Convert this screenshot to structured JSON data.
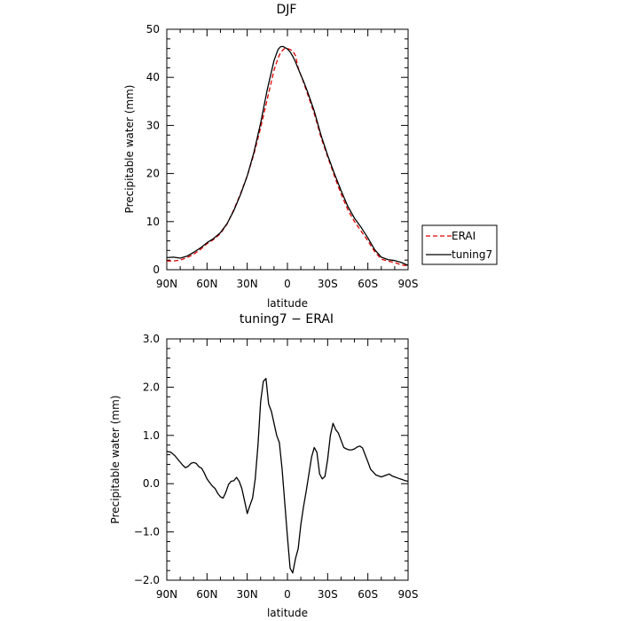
{
  "chart_data": [
    {
      "type": "line",
      "title": "DJF",
      "xlabel": "latitude",
      "ylabel": "Precipitable water (mm)",
      "xlim": [
        90,
        -90
      ],
      "ylim": [
        0,
        50
      ],
      "x_ticks": [
        90,
        60,
        30,
        0,
        -30,
        -60,
        -90
      ],
      "x_tick_labels": [
        "90N",
        "60N",
        "30N",
        "0",
        "30S",
        "60S",
        "90S"
      ],
      "y_ticks": [
        0,
        10,
        20,
        30,
        40,
        50
      ],
      "y_tick_labels": [
        "0",
        "10",
        "20",
        "30",
        "40",
        "50"
      ],
      "grid": false,
      "legend_position": "right, outside plot",
      "series": [
        {
          "name": "ERAI",
          "color": "#dd0000",
          "dash": true,
          "x": [
            90,
            85,
            80,
            75,
            70,
            65,
            60,
            55,
            50,
            45,
            40,
            35,
            30,
            25,
            20,
            15,
            10,
            7,
            5,
            3,
            2,
            0,
            -2,
            -4,
            -6,
            -8,
            -10,
            -12,
            -15,
            -20,
            -25,
            -30,
            -35,
            -40,
            -45,
            -50,
            -55,
            -60,
            -65,
            -70,
            -75,
            -80,
            -85,
            -90
          ],
          "y": [
            1.8,
            1.8,
            2.0,
            2.5,
            3.2,
            4.2,
            5.4,
            6.3,
            7.5,
            9.5,
            12.5,
            15.8,
            19.5,
            24.0,
            29.5,
            35.5,
            41.5,
            44.0,
            45.2,
            45.8,
            46.0,
            46.0,
            45.8,
            45.5,
            44.5,
            42.0,
            40.5,
            39.0,
            36.5,
            32.5,
            27.5,
            23.5,
            19.5,
            15.8,
            12.5,
            10.0,
            8.0,
            6.0,
            3.8,
            2.2,
            1.8,
            1.5,
            1.0,
            0.8
          ]
        },
        {
          "name": "tuning7",
          "color": "#000000",
          "dash": false,
          "x": [
            90,
            85,
            80,
            75,
            70,
            65,
            60,
            55,
            50,
            45,
            40,
            35,
            30,
            25,
            20,
            15,
            10,
            7,
            5,
            3,
            2,
            0,
            -2,
            -4,
            -6,
            -8,
            -10,
            -12,
            -15,
            -20,
            -25,
            -30,
            -35,
            -40,
            -45,
            -50,
            -55,
            -60,
            -65,
            -70,
            -75,
            -80,
            -85,
            -90
          ],
          "y": [
            2.5,
            2.6,
            2.4,
            2.8,
            3.6,
            4.5,
            5.6,
            6.5,
            7.7,
            9.6,
            12.3,
            15.6,
            19.5,
            24.4,
            30.5,
            37.5,
            43.5,
            45.8,
            46.4,
            46.4,
            46.2,
            45.9,
            45.3,
            44.4,
            43.2,
            41.8,
            40.5,
            39.2,
            37.0,
            33.0,
            28.0,
            23.8,
            20.0,
            16.5,
            13.2,
            10.7,
            8.8,
            6.6,
            4.2,
            2.6,
            2.1,
            1.9,
            1.5,
            0.9
          ]
        }
      ]
    },
    {
      "type": "line",
      "title": "tuning7 − ERAI",
      "xlabel": "latitude",
      "ylabel": "Precipitable water (mm)",
      "xlim": [
        90,
        -90
      ],
      "ylim": [
        -2.0,
        3.0
      ],
      "x_ticks": [
        90,
        60,
        30,
        0,
        -30,
        -60,
        -90
      ],
      "x_tick_labels": [
        "90N",
        "60N",
        "30N",
        "0",
        "30S",
        "60S",
        "90S"
      ],
      "y_ticks": [
        -2.0,
        -1.0,
        0.0,
        1.0,
        2.0,
        3.0
      ],
      "y_tick_labels": [
        "−2.0",
        "−1.0",
        "0.0",
        "1.0",
        "2.0",
        "3.0"
      ],
      "grid": false,
      "series": [
        {
          "color": "#000000",
          "x": [
            90,
            87,
            84,
            81,
            78,
            76,
            74,
            72,
            70,
            68,
            66,
            64,
            62,
            60,
            58,
            56,
            54,
            52,
            50,
            48,
            46,
            44,
            42,
            40,
            38,
            36,
            34,
            32,
            30,
            28,
            26,
            24,
            22,
            20,
            18,
            16,
            14,
            12,
            10,
            8,
            6,
            4,
            2,
            0,
            -2,
            -4,
            -6,
            -8,
            -10,
            -12,
            -14,
            -16,
            -18,
            -20,
            -22,
            -24,
            -26,
            -28,
            -30,
            -32,
            -34,
            -36,
            -38,
            -40,
            -42,
            -44,
            -46,
            -48,
            -50,
            -52,
            -54,
            -56,
            -58,
            -60,
            -62,
            -64,
            -66,
            -68,
            -70,
            -72,
            -74,
            -76,
            -78,
            -80,
            -82,
            -84,
            -86,
            -88,
            -90
          ],
          "y": [
            0.67,
            0.65,
            0.58,
            0.48,
            0.38,
            0.33,
            0.36,
            0.42,
            0.44,
            0.42,
            0.35,
            0.32,
            0.22,
            0.1,
            0.02,
            -0.05,
            -0.1,
            -0.2,
            -0.27,
            -0.3,
            -0.18,
            -0.02,
            0.05,
            0.06,
            0.13,
            0.05,
            -0.1,
            -0.35,
            -0.62,
            -0.45,
            -0.3,
            0.1,
            0.8,
            1.7,
            2.12,
            2.18,
            1.65,
            1.5,
            1.25,
            1.0,
            0.85,
            0.3,
            -0.4,
            -1.1,
            -1.75,
            -1.85,
            -1.55,
            -1.35,
            -0.85,
            -0.48,
            -0.15,
            0.2,
            0.55,
            0.75,
            0.65,
            0.2,
            0.1,
            0.15,
            0.5,
            1.0,
            1.25,
            1.12,
            1.05,
            0.9,
            0.75,
            0.72,
            0.7,
            0.7,
            0.72,
            0.76,
            0.78,
            0.74,
            0.6,
            0.45,
            0.3,
            0.24,
            0.18,
            0.16,
            0.14,
            0.16,
            0.18,
            0.2,
            0.16,
            0.14,
            0.12,
            0.1,
            0.08,
            0.06,
            0.05
          ]
        }
      ]
    }
  ]
}
